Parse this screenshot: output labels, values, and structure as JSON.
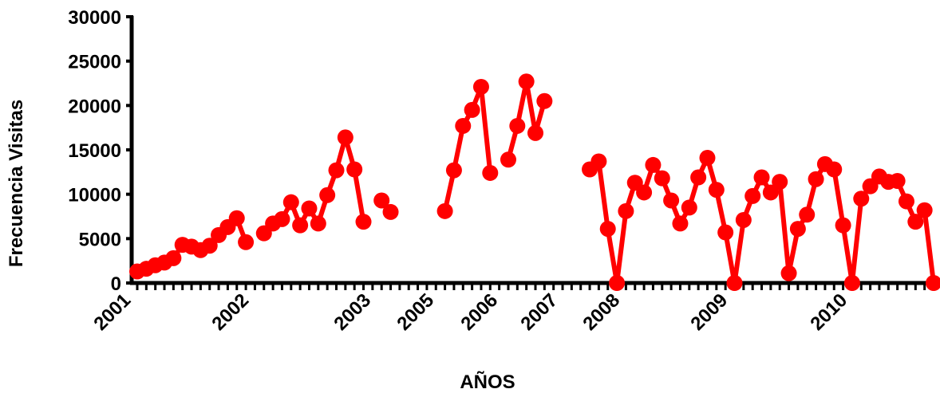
{
  "chart_data": {
    "type": "line",
    "title": "",
    "xlabel": "AÑOS",
    "ylabel": "Frecuencia Visitas",
    "ylim": [
      0,
      30000
    ],
    "y_ticks": [
      0,
      5000,
      10000,
      15000,
      20000,
      25000,
      30000
    ],
    "x_tick_labels": [
      "2001",
      "2002",
      "2003",
      "2005",
      "2006",
      "2007",
      "2008",
      "2009",
      "2010"
    ],
    "grid": false,
    "legend": "none",
    "color": "#ff0000",
    "series": [
      {
        "segments": [
          [
            1300,
            1600,
            2000,
            2300,
            2800,
            4300,
            4100,
            3700,
            4200,
            5400,
            6300,
            7300,
            4600
          ],
          [
            5600,
            6700,
            7200,
            9100,
            6500,
            8400,
            6700,
            9900,
            12700,
            16400,
            12800,
            6900
          ],
          [
            9300,
            8000
          ],
          [
            8100,
            12700,
            17700,
            19500,
            22100,
            12400
          ],
          [
            13900,
            17700,
            22700,
            16900,
            20500
          ],
          [
            12800,
            13700,
            6100,
            0,
            8100,
            11300,
            10200,
            13300,
            11800,
            9300,
            6700,
            8500,
            11900,
            14100,
            10500,
            5700,
            0,
            7100,
            9800,
            11900,
            10200,
            11400,
            1100,
            6100,
            7700,
            11700,
            13400,
            12800,
            6500,
            0,
            9500,
            10900,
            12000,
            11400,
            11500,
            9200,
            6900,
            8200,
            0
          ]
        ]
      }
    ]
  }
}
